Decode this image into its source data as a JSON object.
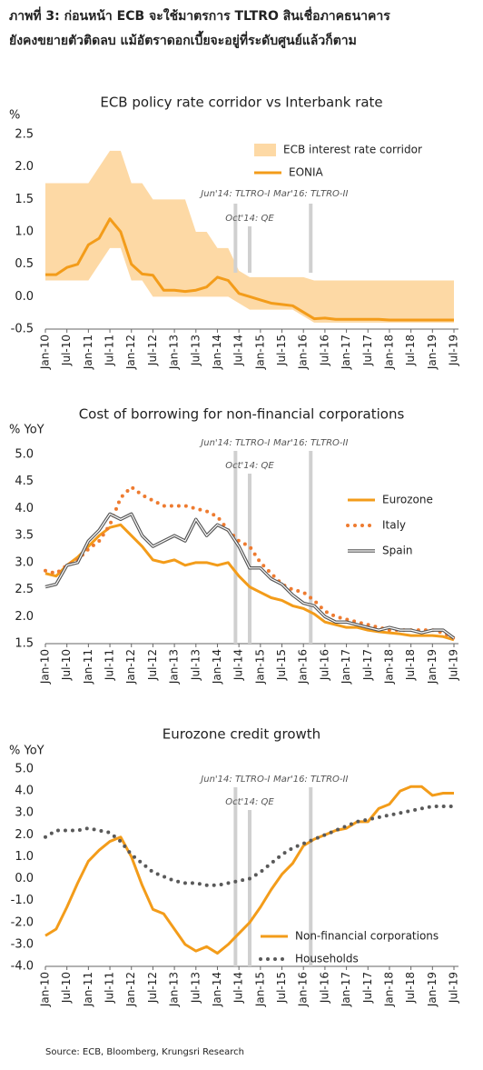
{
  "header": {
    "lines": [
      "ภาพที่ 3: ก่อนหน้า ECB จะใช้มาตรการ TLTRO สินเชื่อภาคธนาคาร",
      "ยังคงขยายตัวติดลบ แม้อัตราดอกเบี้ยจะอยู่ที่ระดับศูนย์แล้วก็ตาม"
    ]
  },
  "chart_data": [
    {
      "type": "line",
      "title": "ECB policy rate corridor vs Interbank rate",
      "y_label": "%",
      "x": [
        2010,
        2010.25,
        2010.5,
        2010.75,
        2011,
        2011.25,
        2011.5,
        2011.75,
        2012,
        2012.25,
        2012.5,
        2012.75,
        2013,
        2013.25,
        2013.5,
        2013.75,
        2014,
        2014.25,
        2014.5,
        2014.75,
        2015,
        2015.25,
        2015.5,
        2015.75,
        2016,
        2016.25,
        2016.5,
        2016.75,
        2017,
        2017.25,
        2017.5,
        2017.75,
        2018,
        2018.25,
        2018.5,
        2018.75,
        2019,
        2019.25,
        2019.5
      ],
      "xlim": [
        2010,
        2019.5
      ],
      "xticks": [
        {
          "value": 2010,
          "label": "Jan-10"
        },
        {
          "value": 2010.5,
          "label": "Jul-10"
        },
        {
          "value": 2011,
          "label": "Jan-11"
        },
        {
          "value": 2011.5,
          "label": "Jul-11"
        },
        {
          "value": 2012,
          "label": "Jan-12"
        },
        {
          "value": 2012.5,
          "label": "Jul-12"
        },
        {
          "value": 2013,
          "label": "Jan-13"
        },
        {
          "value": 2013.5,
          "label": "Jul-13"
        },
        {
          "value": 2014,
          "label": "Jan-14"
        },
        {
          "value": 2014.5,
          "label": "Jul-14"
        },
        {
          "value": 2015,
          "label": "Jan-15"
        },
        {
          "value": 2015.5,
          "label": "Jul-15"
        },
        {
          "value": 2016,
          "label": "Jan-16"
        },
        {
          "value": 2016.5,
          "label": "Jul-16"
        },
        {
          "value": 2017,
          "label": "Jan-17"
        },
        {
          "value": 2017.5,
          "label": "Jul-17"
        },
        {
          "value": 2018,
          "label": "Jan-18"
        },
        {
          "value": 2018.5,
          "label": "Jul-18"
        },
        {
          "value": 2019,
          "label": "Jan-19"
        },
        {
          "value": 2019.5,
          "label": "Jul-19"
        }
      ],
      "ylim": [
        -0.5,
        2.5
      ],
      "yticks": [
        -0.5,
        {
          "value": 0,
          "label": "0.0"
        },
        0.5,
        {
          "value": 1,
          "label": "1.0"
        },
        1.5,
        {
          "value": 2,
          "label": "2.0"
        },
        2.5
      ],
      "annotations": [
        {
          "label": "Jun'14: TLTRO-I",
          "x": 2014.42
        },
        {
          "label": "Oct'14: QE",
          "x": 2014.75
        },
        {
          "label": "Mar'16: TLTRO-II",
          "x": 2016.17
        }
      ],
      "series": [
        {
          "name": "ECB interest rate corridor",
          "style": "band",
          "color": "#fdd9a5",
          "upper": [
            1.75,
            1.75,
            1.75,
            1.75,
            1.75,
            2,
            2.25,
            2.25,
            1.75,
            1.75,
            1.5,
            1.5,
            1.5,
            1.5,
            1,
            1,
            0.75,
            0.75,
            0.4,
            0.3,
            0.3,
            0.3,
            0.3,
            0.3,
            0.3,
            0.25,
            0.25,
            0.25,
            0.25,
            0.25,
            0.25,
            0.25,
            0.25,
            0.25,
            0.25,
            0.25,
            0.25,
            0.25,
            0.25
          ],
          "lower": [
            0.25,
            0.25,
            0.25,
            0.25,
            0.25,
            0.5,
            0.75,
            0.75,
            0.25,
            0.25,
            0,
            0,
            0,
            0,
            0,
            0,
            0,
            0,
            -0.1,
            -0.2,
            -0.2,
            -0.2,
            -0.2,
            -0.2,
            -0.3,
            -0.4,
            -0.4,
            -0.4,
            -0.4,
            -0.4,
            -0.4,
            -0.4,
            -0.4,
            -0.4,
            -0.4,
            -0.4,
            -0.4,
            -0.4,
            -0.4
          ]
        },
        {
          "name": "EONIA",
          "style": "solid",
          "color": "#f39c1a",
          "values": [
            0.34,
            0.34,
            0.45,
            0.5,
            0.8,
            0.9,
            1.2,
            1.0,
            0.5,
            0.35,
            0.33,
            0.1,
            0.1,
            0.08,
            0.1,
            0.15,
            0.3,
            0.25,
            0.05,
            0,
            -0.05,
            -0.1,
            -0.12,
            -0.14,
            -0.24,
            -0.34,
            -0.33,
            -0.35,
            -0.35,
            -0.35,
            -0.35,
            -0.35,
            -0.36,
            -0.36,
            -0.36,
            -0.36,
            -0.36,
            -0.36,
            -0.36
          ]
        }
      ]
    },
    {
      "type": "line",
      "title": "Cost of borrowing for non-financial corporations",
      "y_label": "% YoY",
      "x": [
        2010,
        2010.25,
        2010.5,
        2010.75,
        2011,
        2011.25,
        2011.5,
        2011.75,
        2012,
        2012.25,
        2012.5,
        2012.75,
        2013,
        2013.25,
        2013.5,
        2013.75,
        2014,
        2014.25,
        2014.5,
        2014.75,
        2015,
        2015.25,
        2015.5,
        2015.75,
        2016,
        2016.25,
        2016.5,
        2016.75,
        2017,
        2017.25,
        2017.5,
        2017.75,
        2018,
        2018.25,
        2018.5,
        2018.75,
        2019,
        2019.25,
        2019.5
      ],
      "xlim": [
        2010,
        2019.5
      ],
      "xticks": [
        {
          "value": 2010,
          "label": "Jan-10"
        },
        {
          "value": 2010.5,
          "label": "Jul-10"
        },
        {
          "value": 2011,
          "label": "Jan-11"
        },
        {
          "value": 2011.5,
          "label": "Jul-11"
        },
        {
          "value": 2012,
          "label": "Jan-12"
        },
        {
          "value": 2012.5,
          "label": "Jul-12"
        },
        {
          "value": 2013,
          "label": "Jan-13"
        },
        {
          "value": 2013.5,
          "label": "Jul-13"
        },
        {
          "value": 2014,
          "label": "Jan-14"
        },
        {
          "value": 2014.5,
          "label": "Jul-14"
        },
        {
          "value": 2015,
          "label": "Jan-15"
        },
        {
          "value": 2015.5,
          "label": "Jul-15"
        },
        {
          "value": 2016,
          "label": "Jan-16"
        },
        {
          "value": 2016.5,
          "label": "Jul-16"
        },
        {
          "value": 2017,
          "label": "Jan-17"
        },
        {
          "value": 2017.5,
          "label": "Jul-17"
        },
        {
          "value": 2018,
          "label": "Jan-18"
        },
        {
          "value": 2018.5,
          "label": "Jul-18"
        },
        {
          "value": 2019,
          "label": "Jan-19"
        },
        {
          "value": 2019.5,
          "label": "Jul-19"
        }
      ],
      "ylim": [
        1.5,
        5
      ],
      "yticks": [
        1.5,
        {
          "value": 2,
          "label": "2.0"
        },
        2.5,
        {
          "value": 3,
          "label": "3.0"
        },
        3.5,
        {
          "value": 4,
          "label": "4.0"
        },
        4.5,
        {
          "value": 5,
          "label": "5.0"
        }
      ],
      "annotations": [
        {
          "label": "Jun'14: TLTRO-I",
          "x": 2014.42
        },
        {
          "label": "Oct'14: QE",
          "x": 2014.75
        },
        {
          "label": "Mar'16: TLTRO-II",
          "x": 2016.17
        }
      ],
      "series": [
        {
          "name": "Eurozone",
          "style": "solid",
          "color": "#f39c1a",
          "values": [
            2.8,
            2.75,
            2.95,
            3.1,
            3.3,
            3.5,
            3.65,
            3.7,
            3.5,
            3.3,
            3.05,
            3.0,
            3.05,
            2.95,
            3.0,
            3.0,
            2.95,
            3.0,
            2.75,
            2.55,
            2.45,
            2.35,
            2.3,
            2.2,
            2.15,
            2.05,
            1.9,
            1.85,
            1.8,
            1.8,
            1.75,
            1.72,
            1.7,
            1.68,
            1.65,
            1.65,
            1.65,
            1.63,
            1.57
          ]
        },
        {
          "name": "Italy",
          "style": "dotted",
          "color": "#ee7b30",
          "values": [
            2.85,
            2.8,
            2.95,
            3.05,
            3.25,
            3.4,
            3.7,
            4.2,
            4.4,
            4.25,
            4.15,
            4.05,
            4.05,
            4.05,
            4.0,
            3.95,
            3.85,
            3.6,
            3.4,
            3.3,
            3.0,
            2.8,
            2.6,
            2.5,
            2.45,
            2.3,
            2.1,
            2.0,
            1.95,
            1.9,
            1.85,
            1.8,
            1.75,
            1.75,
            1.75,
            1.75,
            1.75,
            1.7,
            1.6
          ]
        },
        {
          "name": "Spain",
          "style": "double",
          "color": "#555555",
          "values": [
            2.55,
            2.6,
            2.95,
            3.0,
            3.4,
            3.6,
            3.9,
            3.8,
            3.9,
            3.5,
            3.3,
            3.4,
            3.5,
            3.4,
            3.8,
            3.5,
            3.7,
            3.6,
            3.3,
            2.9,
            2.9,
            2.7,
            2.6,
            2.4,
            2.25,
            2.2,
            2.0,
            1.9,
            1.9,
            1.85,
            1.8,
            1.75,
            1.8,
            1.75,
            1.75,
            1.7,
            1.75,
            1.75,
            1.6
          ]
        }
      ]
    },
    {
      "type": "line",
      "title": "Eurozone credit growth",
      "y_label": "% YoY",
      "x": [
        2010,
        2010.25,
        2010.5,
        2010.75,
        2011,
        2011.25,
        2011.5,
        2011.75,
        2012,
        2012.25,
        2012.5,
        2012.75,
        2013,
        2013.25,
        2013.5,
        2013.75,
        2014,
        2014.25,
        2014.5,
        2014.75,
        2015,
        2015.25,
        2015.5,
        2015.75,
        2016,
        2016.25,
        2016.5,
        2016.75,
        2017,
        2017.25,
        2017.5,
        2017.75,
        2018,
        2018.25,
        2018.5,
        2018.75,
        2019,
        2019.25,
        2019.5
      ],
      "xlim": [
        2010,
        2019.5
      ],
      "xticks": [
        {
          "value": 2010,
          "label": "Jan-10"
        },
        {
          "value": 2010.5,
          "label": "Jul-10"
        },
        {
          "value": 2011,
          "label": "Jan-11"
        },
        {
          "value": 2011.5,
          "label": "Jul-11"
        },
        {
          "value": 2012,
          "label": "Jan-12"
        },
        {
          "value": 2012.5,
          "label": "Jul-12"
        },
        {
          "value": 2013,
          "label": "Jan-13"
        },
        {
          "value": 2013.5,
          "label": "Jul-13"
        },
        {
          "value": 2014,
          "label": "Jan-14"
        },
        {
          "value": 2014.5,
          "label": "Jul-14"
        },
        {
          "value": 2015,
          "label": "Jan-15"
        },
        {
          "value": 2015.5,
          "label": "Jul-15"
        },
        {
          "value": 2016,
          "label": "Jan-16"
        },
        {
          "value": 2016.5,
          "label": "Jul-16"
        },
        {
          "value": 2017,
          "label": "Jan-17"
        },
        {
          "value": 2017.5,
          "label": "Jul-17"
        },
        {
          "value": 2018,
          "label": "Jan-18"
        },
        {
          "value": 2018.5,
          "label": "Jul-18"
        },
        {
          "value": 2019,
          "label": "Jan-19"
        },
        {
          "value": 2019.5,
          "label": "Jul-19"
        }
      ],
      "ylim": [
        -4,
        5
      ],
      "yticks": [
        {
          "value": -4,
          "label": "-4.0"
        },
        {
          "value": -3,
          "label": "-3.0"
        },
        {
          "value": -2,
          "label": "-2.0"
        },
        {
          "value": -1,
          "label": "-1.0"
        },
        {
          "value": 0,
          "label": "0.0"
        },
        {
          "value": 1,
          "label": "1.0"
        },
        {
          "value": 2,
          "label": "2.0"
        },
        {
          "value": 3,
          "label": "3.0"
        },
        {
          "value": 4,
          "label": "4.0"
        },
        {
          "value": 5,
          "label": "5.0"
        }
      ],
      "annotations": [
        {
          "label": "Jun'14: TLTRO-I",
          "x": 2014.42
        },
        {
          "label": "Oct'14: QE",
          "x": 2014.75
        },
        {
          "label": "Mar'16: TLTRO-II",
          "x": 2016.17
        }
      ],
      "series": [
        {
          "name": "Non-financial corporations",
          "style": "solid",
          "color": "#f39c1a",
          "values": [
            -2.6,
            -2.3,
            -1.3,
            -0.2,
            0.8,
            1.3,
            1.7,
            1.9,
            1.0,
            -0.3,
            -1.4,
            -1.6,
            -2.3,
            -3.0,
            -3.3,
            -3.1,
            -3.4,
            -3.0,
            -2.5,
            -2.0,
            -1.3,
            -0.5,
            0.2,
            0.7,
            1.5,
            1.8,
            2.0,
            2.2,
            2.3,
            2.6,
            2.6,
            3.2,
            3.4,
            4.0,
            4.2,
            4.2,
            3.8,
            3.9,
            3.9
          ]
        },
        {
          "name": "Households",
          "style": "dotted",
          "color": "#595959",
          "values": [
            1.9,
            2.2,
            2.2,
            2.2,
            2.3,
            2.2,
            2.1,
            1.7,
            1.1,
            0.7,
            0.3,
            0.1,
            -0.1,
            -0.2,
            -0.2,
            -0.3,
            -0.3,
            -0.2,
            -0.1,
            0,
            0.3,
            0.7,
            1.1,
            1.4,
            1.6,
            1.8,
            2.0,
            2.2,
            2.4,
            2.6,
            2.7,
            2.8,
            2.9,
            3.0,
            3.1,
            3.2,
            3.3,
            3.3,
            3.3
          ]
        }
      ]
    }
  ],
  "source": "Source: ECB, Bloomberg, Krungsri Research"
}
